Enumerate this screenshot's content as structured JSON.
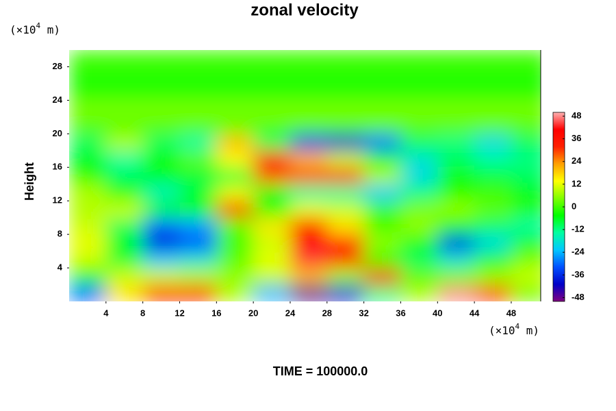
{
  "chart_data": {
    "type": "contour",
    "title": "zonal velocity",
    "y_label": "Height",
    "y_unit": {
      "prefix": "(×10",
      "exponent": "4",
      "suffix": " m)"
    },
    "x_unit": {
      "prefix": "(×10",
      "exponent": "4",
      "suffix": " m)"
    },
    "footer": "TIME = 100000.0",
    "xlim": [
      0,
      51.2
    ],
    "ylim": [
      0,
      30
    ],
    "xticks": [
      4,
      8,
      12,
      16,
      20,
      24,
      28,
      32,
      36,
      40,
      44,
      48
    ],
    "yticks": [
      4,
      8,
      12,
      16,
      20,
      24,
      28
    ],
    "x": [
      2,
      6,
      10,
      14,
      18,
      22,
      26,
      30,
      34,
      38,
      42,
      46,
      50
    ],
    "y": [
      1,
      3,
      5,
      7,
      9,
      11,
      13,
      15,
      17,
      19,
      21,
      23,
      25,
      27,
      29
    ],
    "z": [
      [
        -30,
        16,
        32,
        34,
        8,
        -24,
        -48,
        -40,
        -12,
        8,
        48,
        30,
        4
      ],
      [
        -4,
        10,
        10,
        8,
        6,
        10,
        20,
        6,
        34,
        2,
        4,
        6,
        10
      ],
      [
        10,
        -8,
        -22,
        -18,
        2,
        12,
        44,
        30,
        -4,
        -10,
        -18,
        -6,
        4
      ],
      [
        12,
        -6,
        -38,
        -32,
        0,
        10,
        36,
        34,
        6,
        -6,
        -36,
        -20,
        -6
      ],
      [
        10,
        -10,
        -30,
        -26,
        2,
        16,
        38,
        16,
        0,
        6,
        -4,
        -10,
        -14
      ],
      [
        8,
        10,
        -6,
        -4,
        30,
        -4,
        12,
        10,
        0,
        4,
        6,
        2,
        -2
      ],
      [
        8,
        -4,
        -16,
        -8,
        12,
        -6,
        -14,
        -14,
        -22,
        -12,
        -2,
        0,
        -6
      ],
      [
        -2,
        -10,
        -6,
        -8,
        -8,
        28,
        30,
        34,
        8,
        -20,
        -4,
        -8,
        -10
      ],
      [
        -6,
        -14,
        -4,
        2,
        14,
        36,
        20,
        10,
        -6,
        -18,
        -10,
        -14,
        -12
      ],
      [
        -10,
        8,
        -10,
        -14,
        20,
        -10,
        -36,
        -40,
        -30,
        -10,
        -12,
        -20,
        -10
      ],
      [
        2,
        2,
        2,
        2,
        2,
        2,
        2,
        2,
        2,
        2,
        2,
        2,
        2
      ],
      [
        4,
        4,
        4,
        4,
        4,
        4,
        4,
        4,
        4,
        4,
        4,
        4,
        4
      ],
      [
        -2,
        -2,
        -2,
        -2,
        -2,
        -2,
        -2,
        -2,
        -2,
        -2,
        -2,
        -2,
        -2
      ],
      [
        -2,
        -2,
        -2,
        -2,
        -2,
        -2,
        -2,
        -2,
        -2,
        -2,
        -2,
        -2,
        -2
      ],
      [
        0,
        0,
        0,
        0,
        0,
        0,
        0,
        0,
        0,
        0,
        0,
        0,
        0
      ]
    ],
    "clim": [
      -50,
      50
    ],
    "cticks": [
      -48,
      -36,
      -24,
      -12,
      0,
      12,
      24,
      36,
      48
    ],
    "colormap": [
      "#800080",
      "#0000c8",
      "#0050ff",
      "#00c8ff",
      "#00ffa0",
      "#00ff00",
      "#80ff00",
      "#ffff00",
      "#ffa000",
      "#ff2000",
      "#ff0000",
      "#ffb0b0"
    ]
  }
}
